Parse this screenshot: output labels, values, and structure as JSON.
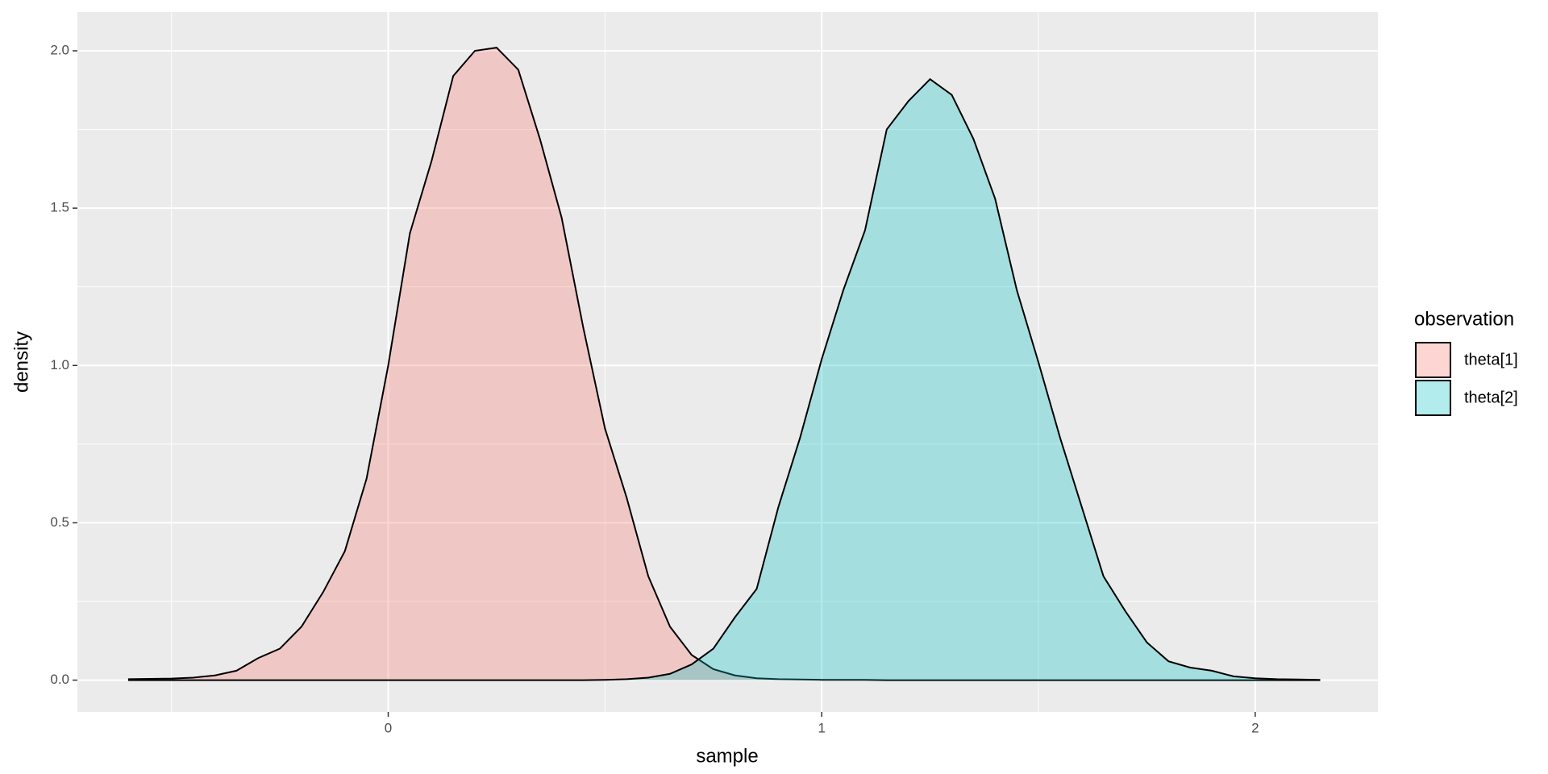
{
  "chart_data": {
    "type": "density",
    "xlabel": "sample",
    "ylabel": "density",
    "legend_title": "observation",
    "legend": "right",
    "x": [
      -0.6,
      -0.55,
      -0.5,
      -0.45,
      -0.4,
      -0.35,
      -0.3,
      -0.25,
      -0.2,
      -0.15,
      -0.1,
      -0.05,
      0,
      0.05,
      0.1,
      0.15,
      0.2,
      0.25,
      0.3,
      0.35,
      0.4,
      0.45,
      0.5,
      0.55,
      0.6,
      0.65,
      0.7,
      0.75,
      0.8,
      0.85,
      0.9,
      0.95,
      1,
      1.05,
      1.1,
      1.15,
      1.2,
      1.25,
      1.3,
      1.35,
      1.4,
      1.45,
      1.5,
      1.55,
      1.6,
      1.65,
      1.7,
      1.75,
      1.8,
      1.85,
      1.9,
      1.95,
      2,
      2.05,
      2.1,
      2.15
    ],
    "series": [
      {
        "name": "theta[1]",
        "color": "#F8766D",
        "values": [
          0.003,
          0.004,
          0.005,
          0.008,
          0.015,
          0.03,
          0.07,
          0.1,
          0.17,
          0.28,
          0.41,
          0.64,
          1.0,
          1.42,
          1.65,
          1.92,
          2.0,
          2.01,
          1.94,
          1.72,
          1.47,
          1.12,
          0.8,
          0.58,
          0.33,
          0.17,
          0.08,
          0.035,
          0.015,
          0.006,
          0.003,
          0.002,
          0.001,
          0.001,
          0.001,
          0,
          0,
          0,
          0,
          0,
          0,
          0,
          0,
          0,
          0,
          0,
          0,
          0,
          0,
          0,
          0,
          0,
          0,
          0,
          0,
          0
        ]
      },
      {
        "name": "theta[2]",
        "color": "#00BFC4",
        "values": [
          0,
          0,
          0,
          0,
          0,
          0,
          0,
          0,
          0,
          0,
          0,
          0,
          0,
          0,
          0,
          0,
          0,
          0,
          0,
          0,
          0,
          0,
          0.001,
          0.003,
          0.008,
          0.02,
          0.05,
          0.1,
          0.2,
          0.29,
          0.55,
          0.77,
          1.02,
          1.24,
          1.43,
          1.75,
          1.84,
          1.91,
          1.86,
          1.72,
          1.53,
          1.24,
          1.01,
          0.77,
          0.55,
          0.33,
          0.22,
          0.12,
          0.06,
          0.04,
          0.03,
          0.012,
          0.006,
          0.003,
          0.002,
          0.001
        ]
      }
    ],
    "fill_alpha": 0.3,
    "xlim": [
      -0.717,
      2.283
    ],
    "ylim": [
      -0.101,
      2.123
    ],
    "xticks": [
      0,
      1,
      2
    ],
    "yticks": [
      {
        "value": 0,
        "label": "0.0"
      },
      {
        "value": 0.5,
        "label": "0.5"
      },
      {
        "value": 1,
        "label": "1.0"
      },
      {
        "value": 1.5,
        "label": "1.5"
      },
      {
        "value": 2,
        "label": "2.0"
      }
    ],
    "x_minor_grid": [
      -0.5,
      0.5,
      1.5
    ],
    "y_minor_grid": [
      0.25,
      0.75,
      1.25,
      1.75
    ],
    "grid": true
  }
}
